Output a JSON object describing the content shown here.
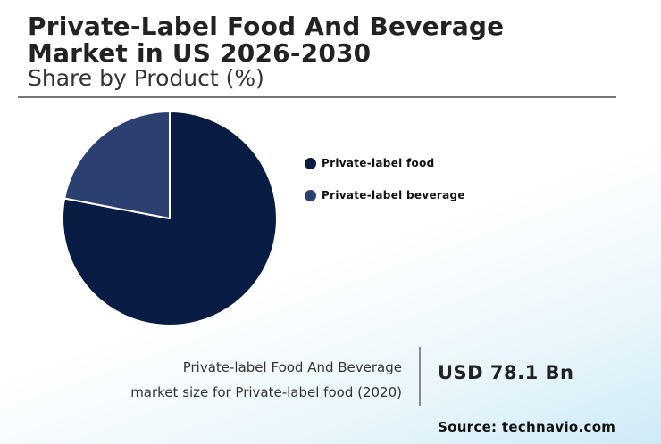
{
  "header": {
    "title_line1": "Private-Label Food And Beverage",
    "title_line2": "Market in US 2026-2030",
    "subtitle": "Share by Product (%)"
  },
  "chart_data": {
    "type": "pie",
    "title": "Share by Product (%)",
    "slices": [
      {
        "label": "Private-label food",
        "value": 78,
        "color": "#081c44"
      },
      {
        "label": "Private-label beverage",
        "value": 22,
        "color": "#2b3f70"
      }
    ],
    "legend_position": "right"
  },
  "callout": {
    "caption_line1": "Private-label Food And Beverage",
    "caption_line2": "market size for Private-label food (2020)",
    "value": "USD 78.1 Bn"
  },
  "source": "Source: technavio.com"
}
